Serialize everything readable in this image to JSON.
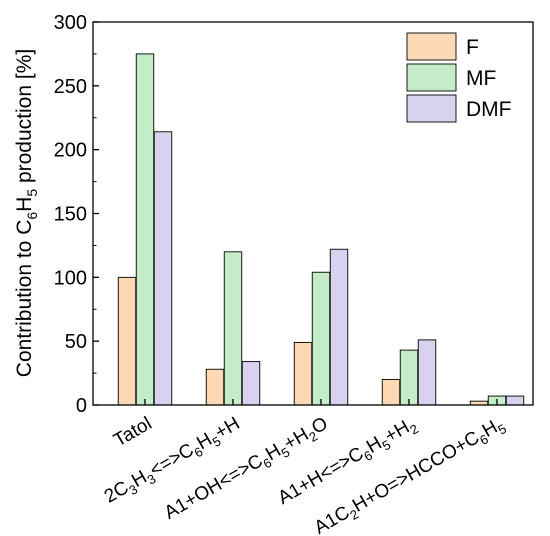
{
  "chart_data": {
    "type": "bar",
    "ylabel": {
      "pre": "Contribution to C",
      "sub1": "6",
      "mid": "H",
      "sub2": "5",
      "post": " production  [%]"
    },
    "ylim": [
      0,
      300
    ],
    "yticks": [
      0,
      50,
      100,
      150,
      200,
      250,
      300
    ],
    "categories": [
      [
        {
          "t": "Tatol"
        }
      ],
      [
        {
          "t": "2C"
        },
        {
          "t": "3",
          "sub": true
        },
        {
          "t": "H"
        },
        {
          "t": "3",
          "sub": true
        },
        {
          "t": "<=>C"
        },
        {
          "t": "6",
          "sub": true
        },
        {
          "t": "H"
        },
        {
          "t": "5",
          "sub": true
        },
        {
          "t": "+H"
        }
      ],
      [
        {
          "t": "A1+OH<=>C"
        },
        {
          "t": "6",
          "sub": true
        },
        {
          "t": "H"
        },
        {
          "t": "5",
          "sub": true
        },
        {
          "t": "+H"
        },
        {
          "t": "2",
          "sub": true
        },
        {
          "t": "O"
        }
      ],
      [
        {
          "t": "A1+H<=>C"
        },
        {
          "t": "6",
          "sub": true
        },
        {
          "t": "H"
        },
        {
          "t": "5",
          "sub": true
        },
        {
          "t": "+H"
        },
        {
          "t": "2",
          "sub": true
        }
      ],
      [
        {
          "t": "A1C"
        },
        {
          "t": "2",
          "sub": true
        },
        {
          "t": "H+O=>HCCO+C"
        },
        {
          "t": "6",
          "sub": true
        },
        {
          "t": "H"
        },
        {
          "t": "5",
          "sub": true
        }
      ]
    ],
    "series": [
      {
        "name": "F",
        "color": "#fdd9b5",
        "values": [
          100,
          28,
          49,
          20,
          3
        ]
      },
      {
        "name": "MF",
        "color": "#c4ecc8",
        "values": [
          275,
          120,
          104,
          43,
          7
        ]
      },
      {
        "name": "DMF",
        "color": "#d9d2ef",
        "values": [
          214,
          34,
          122,
          51,
          7
        ]
      }
    ],
    "legend_position": "top-right",
    "grid": false
  }
}
